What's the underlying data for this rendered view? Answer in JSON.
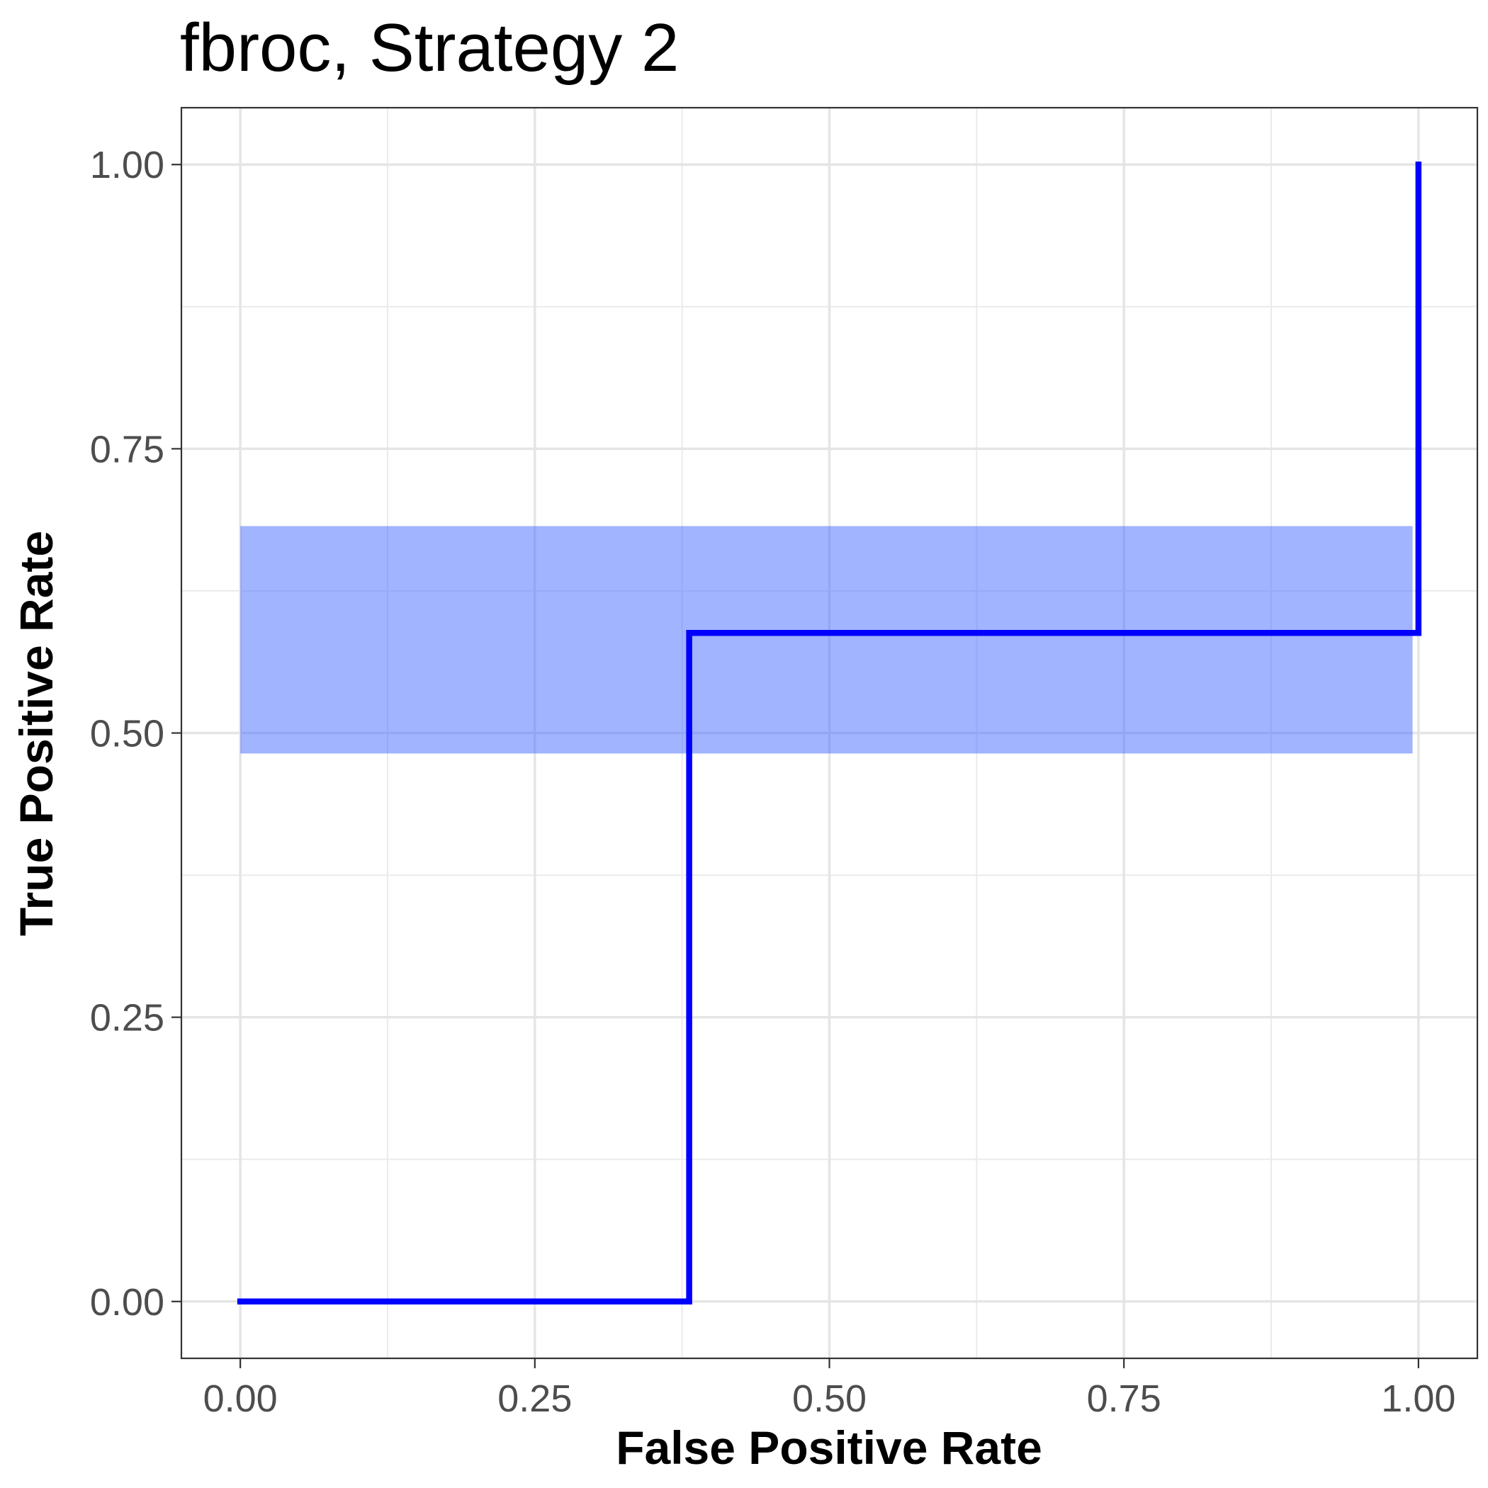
{
  "chart_data": {
    "type": "line",
    "title": "fbroc, Strategy 2",
    "xlabel": "False Positive Rate",
    "ylabel": "True Positive Rate",
    "xlim": [
      -0.05,
      1.05
    ],
    "ylim": [
      -0.05,
      1.05
    ],
    "x_ticks": [
      0,
      0.25,
      0.5,
      0.75,
      1
    ],
    "x_tick_labels": [
      "0.00",
      "0.25",
      "0.50",
      "0.75",
      "1.00"
    ],
    "y_ticks": [
      0,
      0.25,
      0.5,
      0.75,
      1
    ],
    "y_tick_labels": [
      "0.00",
      "0.25",
      "0.50",
      "0.75",
      "1.00"
    ],
    "grid": true,
    "legend": "none",
    "series": [
      {
        "x": [
          0,
          0.381,
          0.381,
          1,
          1
        ],
        "y": [
          0,
          0,
          0.588,
          0.588,
          1
        ],
        "color": "#0000ff"
      }
    ],
    "confidence_band": {
      "x": [
        0,
        0.995
      ],
      "y_lower": 0.482,
      "y_upper": 0.682,
      "color": "#4169ff",
      "opacity": 0.5
    }
  }
}
